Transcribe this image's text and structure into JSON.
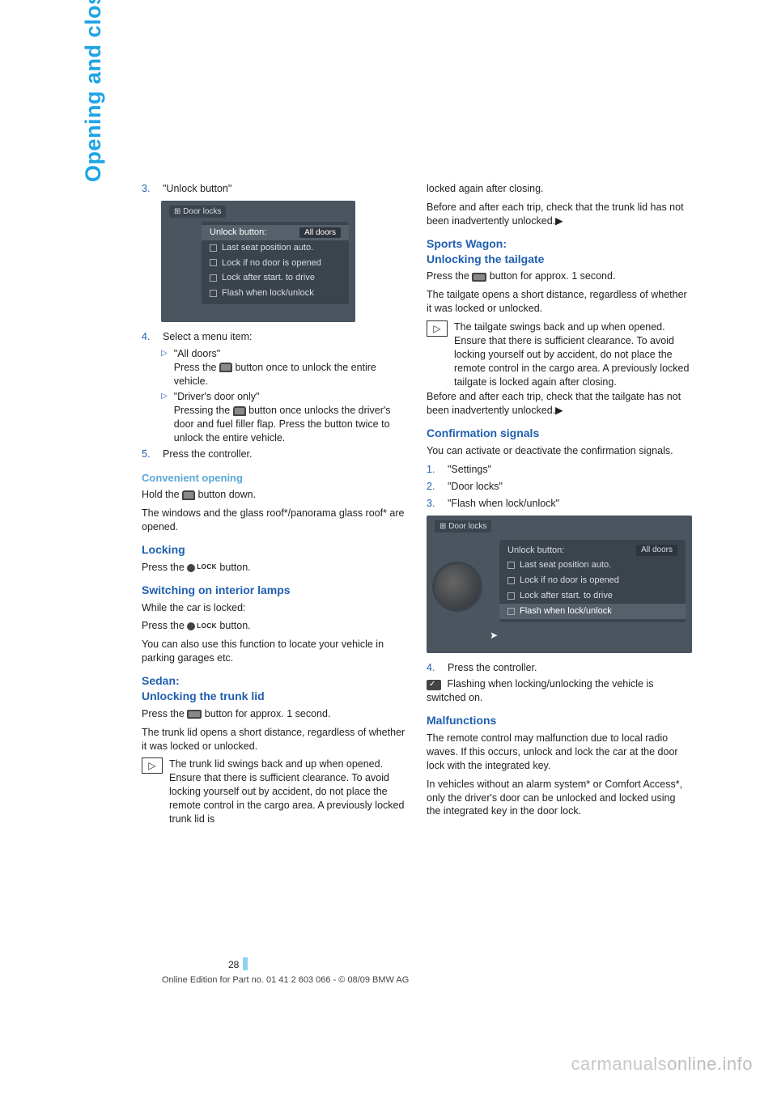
{
  "side_tab": "Opening and closing",
  "left": {
    "step3_num": "3.",
    "step3_text": "\"Unlock button\"",
    "shot1": {
      "tab_icon": "⊞",
      "tab_label": "Door locks",
      "row_hi_label": "Unlock button:",
      "row_hi_value": "All doors",
      "rows": [
        "Last seat position auto.",
        "Lock if no door is opened",
        "Lock after start. to drive",
        "Flash when lock/unlock"
      ]
    },
    "step4_num": "4.",
    "step4_text": "Select a menu item:",
    "b1_title": "\"All doors\"",
    "b1_line1a": "Press the ",
    "b1_line1b": " button once to unlock the entire vehicle.",
    "b2_title": "\"Driver's door only\"",
    "b2_line1a": "Pressing the ",
    "b2_line1b": " button once unlocks the driver's door and fuel filler flap. Press the button twice to unlock the entire vehicle.",
    "step5_num": "5.",
    "step5_text": "Press the controller.",
    "conv_h": "Convenient opening",
    "conv_p1a": "Hold the ",
    "conv_p1b": " button down.",
    "conv_p2": "The windows and the glass roof*/panorama glass roof* are opened.",
    "lock_h": "Locking",
    "lock_p_a": "Press the ",
    "lock_label": "LOCK",
    "lock_p_b": " button.",
    "lamps_h": "Switching on interior lamps",
    "lamps_p1": "While the car is locked:",
    "lamps_p2a": "Press the ",
    "lamps_p2b": " button.",
    "lamps_p3": "You can also use this function to locate your vehicle in parking garages etc.",
    "sedan_h1": "Sedan:",
    "sedan_h2": "Unlocking the trunk lid",
    "sedan_p1a": "Press the ",
    "sedan_p1b": " button for approx. 1 second.",
    "sedan_p2": "The trunk lid opens a short distance, regardless of whether it was locked or unlocked.",
    "sedan_warn": "The trunk lid swings back and up when opened. Ensure that there is sufficient clearance. To avoid locking yourself out by accident, do not place the remote control in the cargo area. A previously locked trunk lid is"
  },
  "right": {
    "cont1": "locked again after closing.",
    "cont2": "Before and after each trip, check that the trunk lid has not been inadvertently unlocked.",
    "end_mark": "◀",
    "wagon_h1": "Sports Wagon:",
    "wagon_h2": "Unlocking the tailgate",
    "wagon_p1a": "Press the ",
    "wagon_p1b": " button for approx. 1 second.",
    "wagon_p2": "The tailgate opens a short distance, regardless of whether it was locked or unlocked.",
    "wagon_warn": "The tailgate swings back and up when opened. Ensure that there is sufficient clearance. To avoid locking yourself out by accident, do not place the remote control in the cargo area. A previously locked tailgate is locked again after closing.",
    "wagon_cont": "Before and after each trip, check that the tailgate has not been inadvertently unlocked.",
    "conf_h": "Confirmation signals",
    "conf_p": "You can activate or deactivate the confirmation signals.",
    "conf_s1_num": "1.",
    "conf_s1": "\"Settings\"",
    "conf_s2_num": "2.",
    "conf_s2": "\"Door locks\"",
    "conf_s3_num": "3.",
    "conf_s3": "\"Flash when lock/unlock\"",
    "shot2": {
      "tab_icon": "⊞",
      "tab_label": "Door locks",
      "row_hi_label": "Unlock button:",
      "row_hi_value": "All doors",
      "rows": [
        "Last seat position auto.",
        "Lock if no door is opened",
        "Lock after start. to drive",
        "Flash when lock/unlock"
      ]
    },
    "conf_s4_num": "4.",
    "conf_s4": "Press the controller.",
    "conf_res": " Flashing when locking/unlocking the vehicle is switched on.",
    "malf_h": "Malfunctions",
    "malf_p1": "The remote control may malfunction due to local radio waves. If this occurs, unlock and lock the car at the door lock with the integrated key.",
    "malf_p2": "In vehicles without an alarm system* or Comfort Access*, only the driver's door can be unlocked and locked using the integrated key in the door lock."
  },
  "page_number": "28",
  "footer": "Online Edition for Part no. 01 41 2 603 066 - © 08/09 BMW AG",
  "watermark_a": "carmanuals",
  "watermark_b": "online.info"
}
